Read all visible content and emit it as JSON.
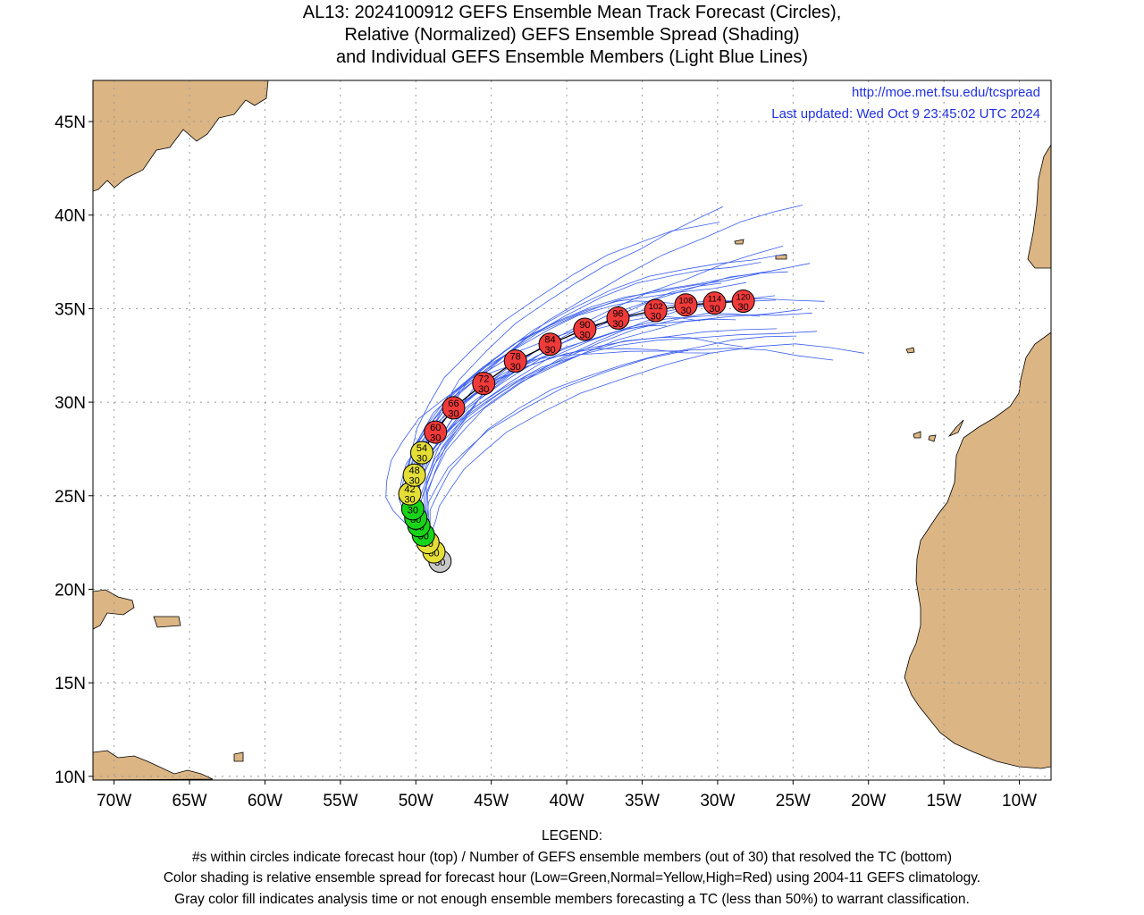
{
  "title": {
    "line1": "AL13: 2024100912 GEFS Ensemble Mean Track Forecast (Circles),",
    "line2": "Relative (Normalized) GEFS Ensemble Spread (Shading)",
    "line3": "and Individual GEFS Ensemble Members (Light Blue Lines)"
  },
  "header": {
    "url": "http://moe.met.fsu.edu/tcspread",
    "updated": "Last updated: Wed Oct 9 23:45:02 UTC 2024"
  },
  "axes": {
    "lon_labels": [
      "70W",
      "65W",
      "60W",
      "55W",
      "50W",
      "45W",
      "40W",
      "35W",
      "30W",
      "25W",
      "20W",
      "15W",
      "10W"
    ],
    "lon_values": [
      -70,
      -65,
      -60,
      -55,
      -50,
      -45,
      -40,
      -35,
      -30,
      -25,
      -20,
      -15,
      -10
    ],
    "lat_labels": [
      "45N",
      "40N",
      "35N",
      "30N",
      "25N",
      "20N",
      "15N",
      "10N"
    ],
    "lat_values": [
      45,
      40,
      35,
      30,
      25,
      20,
      15,
      10
    ],
    "lon_range": [
      -71.4,
      -7.9
    ],
    "lat_range": [
      9.8,
      47.2
    ]
  },
  "colors": {
    "land": "#dbb584",
    "member_line": "#3a5ef0",
    "low_spread": "#18d418",
    "normal_spread": "#e4de36",
    "high_spread": "#f03a3a",
    "analysis": "#c8c8c8",
    "header_text": "#2030e0"
  },
  "track": [
    {
      "hour": "",
      "members": "30",
      "lat": 21.5,
      "lon": -48.4,
      "spread": "analysis"
    },
    {
      "hour": "",
      "members": "30",
      "lat": 22.0,
      "lon": -48.8,
      "spread": "normal"
    },
    {
      "hour": "",
      "members": "30",
      "lat": 22.5,
      "lon": -49.2,
      "spread": "normal"
    },
    {
      "hour": "",
      "members": "30",
      "lat": 22.9,
      "lon": -49.5,
      "spread": "low"
    },
    {
      "hour": "",
      "members": "30",
      "lat": 23.4,
      "lon": -49.8,
      "spread": "low"
    },
    {
      "hour": "",
      "members": "30",
      "lat": 23.8,
      "lon": -50.0,
      "spread": "low"
    },
    {
      "hour": "",
      "members": "30",
      "lat": 24.3,
      "lon": -50.2,
      "spread": "low"
    },
    {
      "hour": "42",
      "members": "30",
      "lat": 25.1,
      "lon": -50.4,
      "spread": "normal"
    },
    {
      "hour": "48",
      "members": "30",
      "lat": 26.1,
      "lon": -50.1,
      "spread": "normal"
    },
    {
      "hour": "54",
      "members": "30",
      "lat": 27.3,
      "lon": -49.6,
      "spread": "normal"
    },
    {
      "hour": "60",
      "members": "30",
      "lat": 28.4,
      "lon": -48.7,
      "spread": "high"
    },
    {
      "hour": "66",
      "members": "30",
      "lat": 29.7,
      "lon": -47.5,
      "spread": "high"
    },
    {
      "hour": "72",
      "members": "30",
      "lat": 31.0,
      "lon": -45.5,
      "spread": "high"
    },
    {
      "hour": "78",
      "members": "30",
      "lat": 32.2,
      "lon": -43.4,
      "spread": "high"
    },
    {
      "hour": "84",
      "members": "30",
      "lat": 33.1,
      "lon": -41.1,
      "spread": "high"
    },
    {
      "hour": "90",
      "members": "30",
      "lat": 33.9,
      "lon": -38.8,
      "spread": "high"
    },
    {
      "hour": "96",
      "members": "30",
      "lat": 34.5,
      "lon": -36.6,
      "spread": "high"
    },
    {
      "hour": "102",
      "members": "30",
      "lat": 34.9,
      "lon": -34.1,
      "spread": "high"
    },
    {
      "hour": "108",
      "members": "30",
      "lat": 35.2,
      "lon": -32.1,
      "spread": "high"
    },
    {
      "hour": "114",
      "members": "30",
      "lat": 35.3,
      "lon": -30.2,
      "spread": "high"
    },
    {
      "hour": "120",
      "members": "30",
      "lat": 35.4,
      "lon": -28.3,
      "spread": "high"
    }
  ],
  "member_end_points": [
    {
      "lat": 40.1,
      "lon": -30.0
    },
    {
      "lat": 40.4,
      "lon": -24.5
    },
    {
      "lat": 39.9,
      "lon": -29.6
    },
    {
      "lat": 38.2,
      "lon": -25.2
    },
    {
      "lat": 37.3,
      "lon": -24.0
    },
    {
      "lat": 38.0,
      "lon": -26.0
    },
    {
      "lat": 36.9,
      "lon": -25.4
    },
    {
      "lat": 35.7,
      "lon": -22.6
    },
    {
      "lat": 35.0,
      "lon": -23.5
    },
    {
      "lat": 33.6,
      "lon": -23.6
    },
    {
      "lat": 33.2,
      "lon": -25.1
    },
    {
      "lat": 34.6,
      "lon": -27.2
    },
    {
      "lat": 33.3,
      "lon": -28.0
    },
    {
      "lat": 32.8,
      "lon": -30.1
    },
    {
      "lat": 32.5,
      "lon": -32.2
    },
    {
      "lat": 33.8,
      "lon": -33.7
    },
    {
      "lat": 32.7,
      "lon": -20.2
    },
    {
      "lat": 32.6,
      "lon": -22.0
    },
    {
      "lat": 36.5,
      "lon": -28.0
    },
    {
      "lat": 35.4,
      "lon": -26.5
    },
    {
      "lat": 36.1,
      "lon": -30.0
    },
    {
      "lat": 34.5,
      "lon": -31.0
    },
    {
      "lat": 35.8,
      "lon": -25.8
    },
    {
      "lat": 36.9,
      "lon": -27.2
    },
    {
      "lat": 33.6,
      "lon": -26.4
    },
    {
      "lat": 34.2,
      "lon": -29.0
    },
    {
      "lat": 35.5,
      "lon": -32.7
    },
    {
      "lat": 37.8,
      "lon": -26.8
    },
    {
      "lat": 34.9,
      "lon": -24.5
    }
  ],
  "legend": {
    "heading": "LEGEND:",
    "line1": "#s within circles indicate forecast hour (top) / Number of GEFS ensemble members (out of 30) that resolved the TC (bottom)",
    "line2": "Color shading is relative ensemble spread for forecast hour (Low=Green,Normal=Yellow,High=Red) using 2004-11 GEFS climatology.",
    "line3": "Gray color fill indicates analysis time or not enough ensemble members forecasting a TC (less than 50%) to warrant classification."
  }
}
